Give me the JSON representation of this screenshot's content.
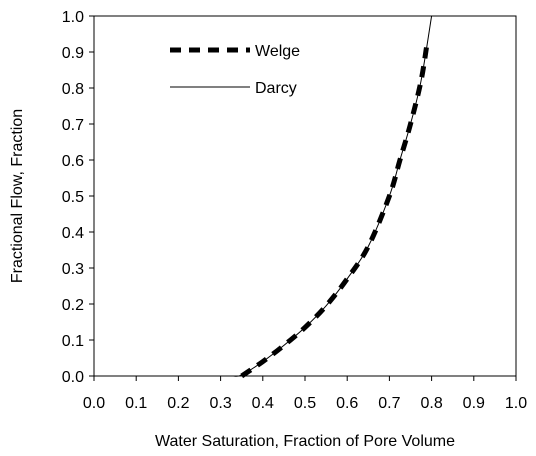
{
  "chart_data": {
    "type": "line",
    "title": "",
    "xlabel": "Water Saturation, Fraction of Pore Volume",
    "ylabel": "Fractional Flow, Fraction",
    "xlim": [
      0.0,
      1.0
    ],
    "ylim": [
      0.0,
      1.0
    ],
    "xticks": [
      "0.0",
      "0.1",
      "0.2",
      "0.3",
      "0.4",
      "0.5",
      "0.6",
      "0.7",
      "0.8",
      "0.9",
      "1.0"
    ],
    "yticks": [
      "0.0",
      "0.1",
      "0.2",
      "0.3",
      "0.4",
      "0.5",
      "0.6",
      "0.7",
      "0.8",
      "0.9",
      "1.0"
    ],
    "grid": false,
    "legend_position": "top-left",
    "series": [
      {
        "name": "Welge",
        "style": "dashed-thick",
        "color": "#000000",
        "x": [
          0.35,
          0.4,
          0.45,
          0.5,
          0.55,
          0.6,
          0.65,
          0.7,
          0.725,
          0.75,
          0.775,
          0.79
        ],
        "y": [
          0.0,
          0.04,
          0.085,
          0.135,
          0.195,
          0.27,
          0.36,
          0.5,
          0.6,
          0.7,
          0.82,
          0.93
        ]
      },
      {
        "name": "Darcy",
        "style": "solid-thin",
        "color": "#000000",
        "x": [
          0.33,
          0.35,
          0.4,
          0.45,
          0.5,
          0.55,
          0.6,
          0.65,
          0.7,
          0.725,
          0.75,
          0.775,
          0.8
        ],
        "y": [
          0.0,
          0.003,
          0.04,
          0.085,
          0.135,
          0.195,
          0.27,
          0.36,
          0.5,
          0.6,
          0.7,
          0.82,
          1.0
        ]
      }
    ]
  }
}
